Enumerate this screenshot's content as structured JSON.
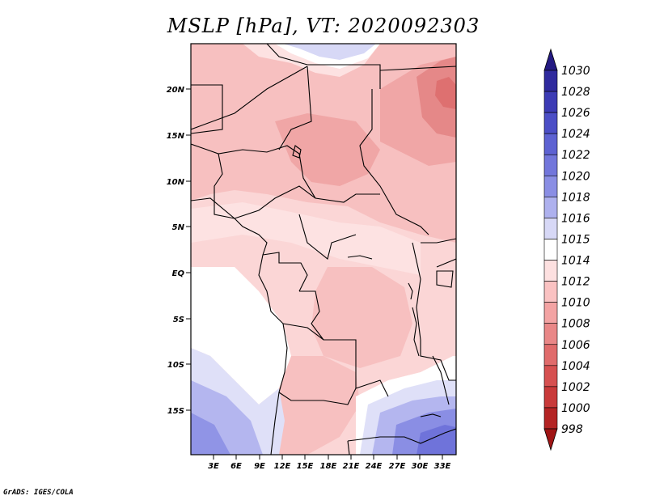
{
  "title": "MSLP [hPa], VT: 2020092303",
  "credit": "GrADS: IGES/COLA",
  "map": {
    "lat_labels": [
      "20N",
      "15N",
      "10N",
      "5N",
      "EQ",
      "5S",
      "10S",
      "15S"
    ],
    "lon_labels": [
      "3E",
      "6E",
      "9E",
      "12E",
      "15E",
      "18E",
      "21E",
      "24E",
      "27E",
      "30E",
      "33E"
    ]
  },
  "colorbar": {
    "levels": [
      "1030",
      "1028",
      "1026",
      "1024",
      "1022",
      "1020",
      "1018",
      "1016",
      "1015",
      "1014",
      "1012",
      "1010",
      "1008",
      "1006",
      "1004",
      "1002",
      "1000",
      "998"
    ],
    "colors": [
      "#241a82",
      "#2f2a9e",
      "#3c3bb5",
      "#4b4ec6",
      "#5d62d2",
      "#7276db",
      "#8a8ee4",
      "#aeb1ee",
      "#d7d8f6",
      "#ffffff",
      "#fde0e0",
      "#fac2c2",
      "#f3a3a3",
      "#e98787",
      "#e06b6b",
      "#d65050",
      "#c93a3a",
      "#b42424",
      "#a01515"
    ]
  }
}
